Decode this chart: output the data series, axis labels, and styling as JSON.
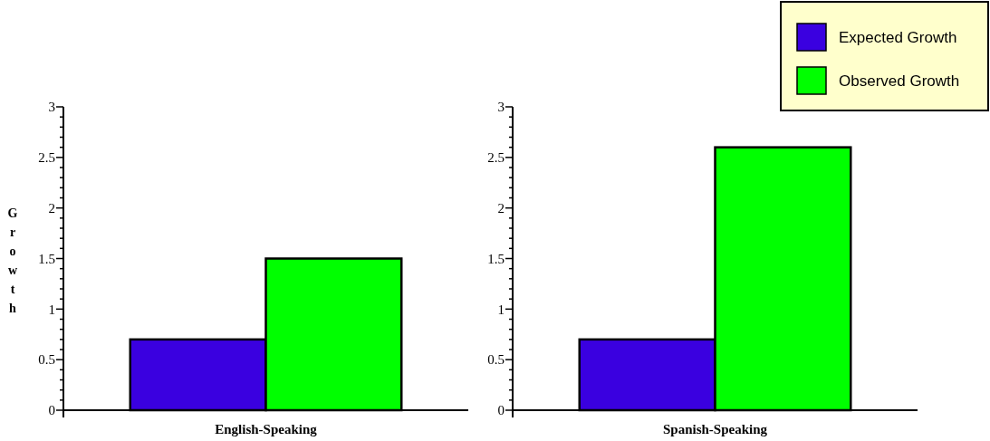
{
  "chart_data": [
    {
      "type": "bar",
      "ylabel": "Growth",
      "categories": [
        "English-Speaking"
      ],
      "series": [
        {
          "color": "#3a00e0",
          "values": [
            0.7
          ]
        },
        {
          "color": "#00ff00",
          "values": [
            1.5
          ]
        }
      ],
      "ylim": [
        0,
        3
      ],
      "yticks": [
        0,
        {
          "value": 0.1,
          "label": null
        },
        {
          "value": 0.2,
          "label": null
        },
        {
          "value": 0.3,
          "label": null
        },
        {
          "value": 0.4,
          "label": null
        },
        0.5,
        {
          "value": 0.6,
          "label": null
        },
        {
          "value": 0.7,
          "label": null
        },
        {
          "value": 0.8,
          "label": null
        },
        {
          "value": 0.9,
          "label": null
        },
        1,
        {
          "value": 1.1,
          "label": null
        },
        {
          "value": 1.2,
          "label": null
        },
        {
          "value": 1.3,
          "label": null
        },
        {
          "value": 1.4,
          "label": null
        },
        1.5,
        {
          "value": 1.6,
          "label": null
        },
        {
          "value": 1.7,
          "label": null
        },
        {
          "value": 1.8,
          "label": null
        },
        {
          "value": 1.9,
          "label": null
        },
        2,
        {
          "value": 2.1,
          "label": null
        },
        {
          "value": 2.2,
          "label": null
        },
        {
          "value": 2.3,
          "label": null
        },
        {
          "value": 2.4,
          "label": null
        },
        2.5,
        {
          "value": 2.6,
          "label": null
        },
        {
          "value": 2.7,
          "label": null
        },
        {
          "value": 2.8,
          "label": null
        },
        {
          "value": 2.9,
          "label": null
        },
        3
      ]
    },
    {
      "type": "bar",
      "categories": [
        "Spanish-Speaking"
      ],
      "series": [
        {
          "name": "Expected Growth",
          "color": "#3a00e0",
          "values": [
            0.7
          ]
        },
        {
          "name": "Observed Growth",
          "color": "#00ff00",
          "values": [
            2.6
          ]
        }
      ],
      "ylim": [
        0,
        3
      ],
      "yticks": [
        0,
        {
          "value": 0.1,
          "label": null
        },
        {
          "value": 0.2,
          "label": null
        },
        {
          "value": 0.3,
          "label": null
        },
        {
          "value": 0.4,
          "label": null
        },
        0.5,
        {
          "value": 0.6,
          "label": null
        },
        {
          "value": 0.7,
          "label": null
        },
        {
          "value": 0.8,
          "label": null
        },
        {
          "value": 0.9,
          "label": null
        },
        1,
        {
          "value": 1.1,
          "label": null
        },
        {
          "value": 1.2,
          "label": null
        },
        {
          "value": 1.3,
          "label": null
        },
        {
          "value": 1.4,
          "label": null
        },
        1.5,
        {
          "value": 1.6,
          "label": null
        },
        {
          "value": 1.7,
          "label": null
        },
        {
          "value": 1.8,
          "label": null
        },
        {
          "value": 1.9,
          "label": null
        },
        2,
        {
          "value": 2.1,
          "label": null
        },
        {
          "value": 2.2,
          "label": null
        },
        {
          "value": 2.3,
          "label": null
        },
        {
          "value": 2.4,
          "label": null
        },
        2.5,
        {
          "value": 2.6,
          "label": null
        },
        {
          "value": 2.7,
          "label": null
        },
        {
          "value": 2.8,
          "label": null
        },
        {
          "value": 2.9,
          "label": null
        },
        3
      ],
      "legend": "top right"
    }
  ]
}
